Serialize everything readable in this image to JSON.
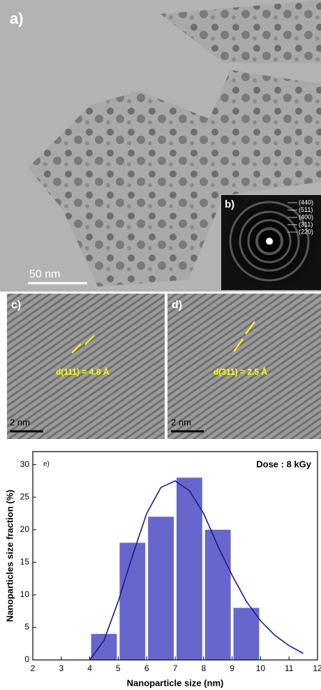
{
  "panels": {
    "a": {
      "label": "a)",
      "scale": "50 nm"
    },
    "b": {
      "label": "b)",
      "rings": [
        "(440)",
        "(511)",
        "(400)",
        "(311)",
        "(220)"
      ]
    },
    "c": {
      "label": "c)",
      "spacing": "d(111) = 4.8 Å",
      "scale": "2 nm"
    },
    "d": {
      "label": "d)",
      "spacing": "d(311) = 2.5 Å",
      "scale": "2 nm"
    }
  },
  "chart_data": {
    "type": "histogram",
    "panel_label": "e)",
    "annotation": "Dose : 8 kGy",
    "x_label": "Nanoparticle size (nm)",
    "y_label": "Nanoparticles size fraction (%)",
    "bins": [
      4,
      5,
      6,
      7,
      8,
      9,
      10
    ],
    "values": [
      4,
      18,
      22,
      28,
      20,
      8
    ],
    "color": "#6666cc",
    "fit": {
      "color": "#1a1a8c",
      "x": [
        4,
        4.5,
        5,
        5.5,
        6,
        6.5,
        7,
        7.5,
        8,
        8.5,
        9,
        9.5,
        10,
        10.5,
        11,
        11.5
      ],
      "values": [
        0,
        3,
        9,
        16,
        22.5,
        26.5,
        27.5,
        26,
        22.5,
        17.5,
        13,
        9,
        6,
        3.8,
        2.2,
        1
      ]
    },
    "xlim": [
      2,
      12
    ],
    "xticks": [
      2,
      3,
      4,
      5,
      6,
      7,
      8,
      9,
      10,
      11,
      12
    ],
    "ylim": [
      0,
      32
    ],
    "yticks": [
      0,
      5,
      10,
      15,
      20,
      25,
      30
    ]
  }
}
